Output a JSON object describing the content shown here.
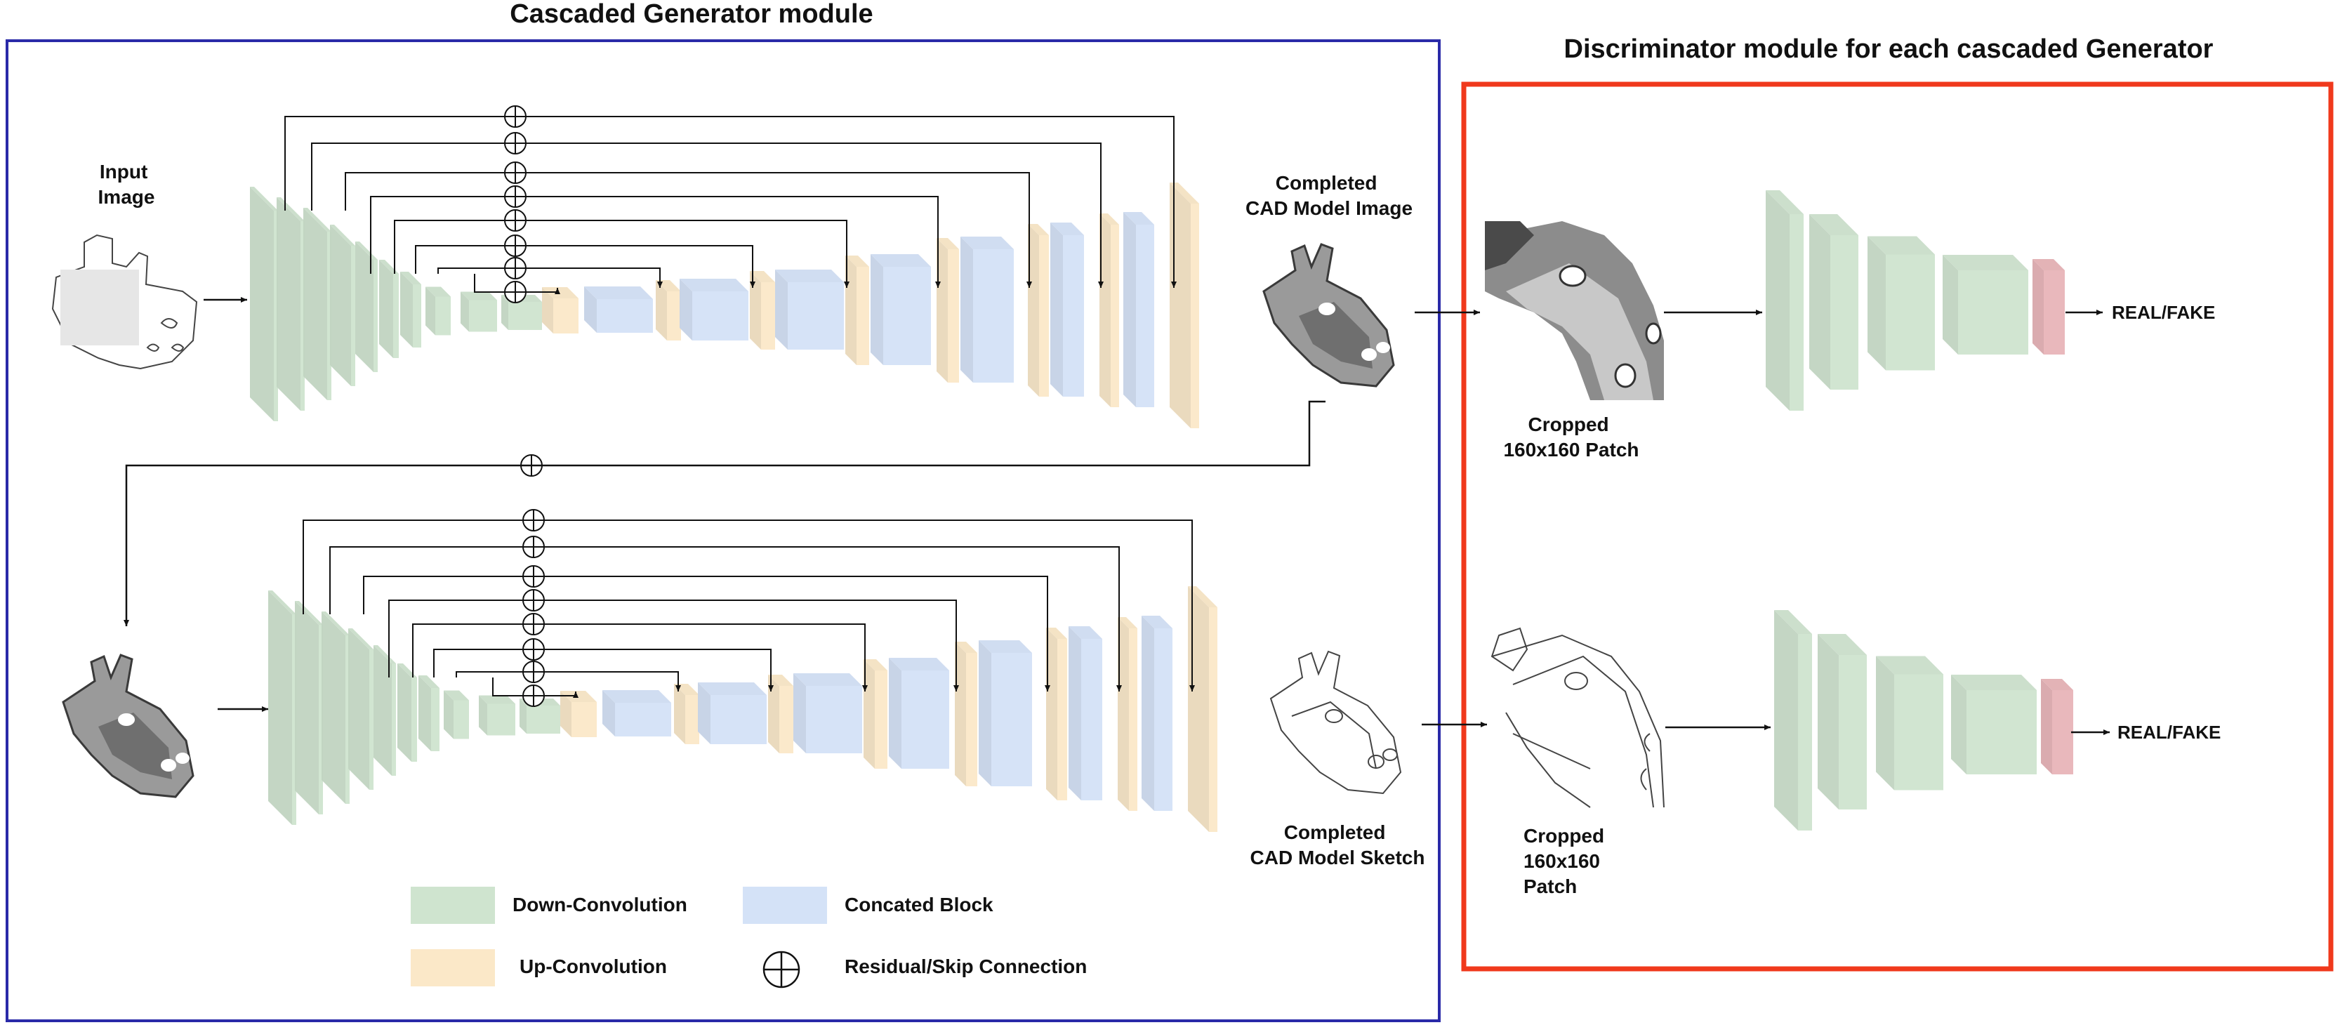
{
  "generator": {
    "title": "Cascaded Generator module"
  },
  "discriminator": {
    "title": "Discriminator module  for each cascaded Generator"
  },
  "images": {
    "input_image": [
      "Input",
      "Image"
    ],
    "completed_image": [
      "Completed",
      "CAD Model Image"
    ],
    "completed_sketch": [
      "Completed",
      "CAD Model Sketch"
    ],
    "cropped_patch_1": [
      "Cropped",
      "160x160 Patch"
    ],
    "cropped_patch_2": [
      "Cropped",
      "160x160",
      "Patch"
    ]
  },
  "outputs": {
    "real_fake_1": "REAL/FAKE",
    "real_fake_2": "REAL/FAKE"
  },
  "legend": {
    "down_conv": "Down-Convolution",
    "concat": "Concated Block",
    "up_conv": "Up-Convolution",
    "skip": "Residual/Skip Connection"
  },
  "colors": {
    "down_conv": "#cfe4cf",
    "concat": "#d4e2f7",
    "up_conv": "#fbe8c8",
    "discriminator_out": "#e8b4b8",
    "generator_frame": "#2a2aa8",
    "discriminator_frame": "#f0391c"
  }
}
